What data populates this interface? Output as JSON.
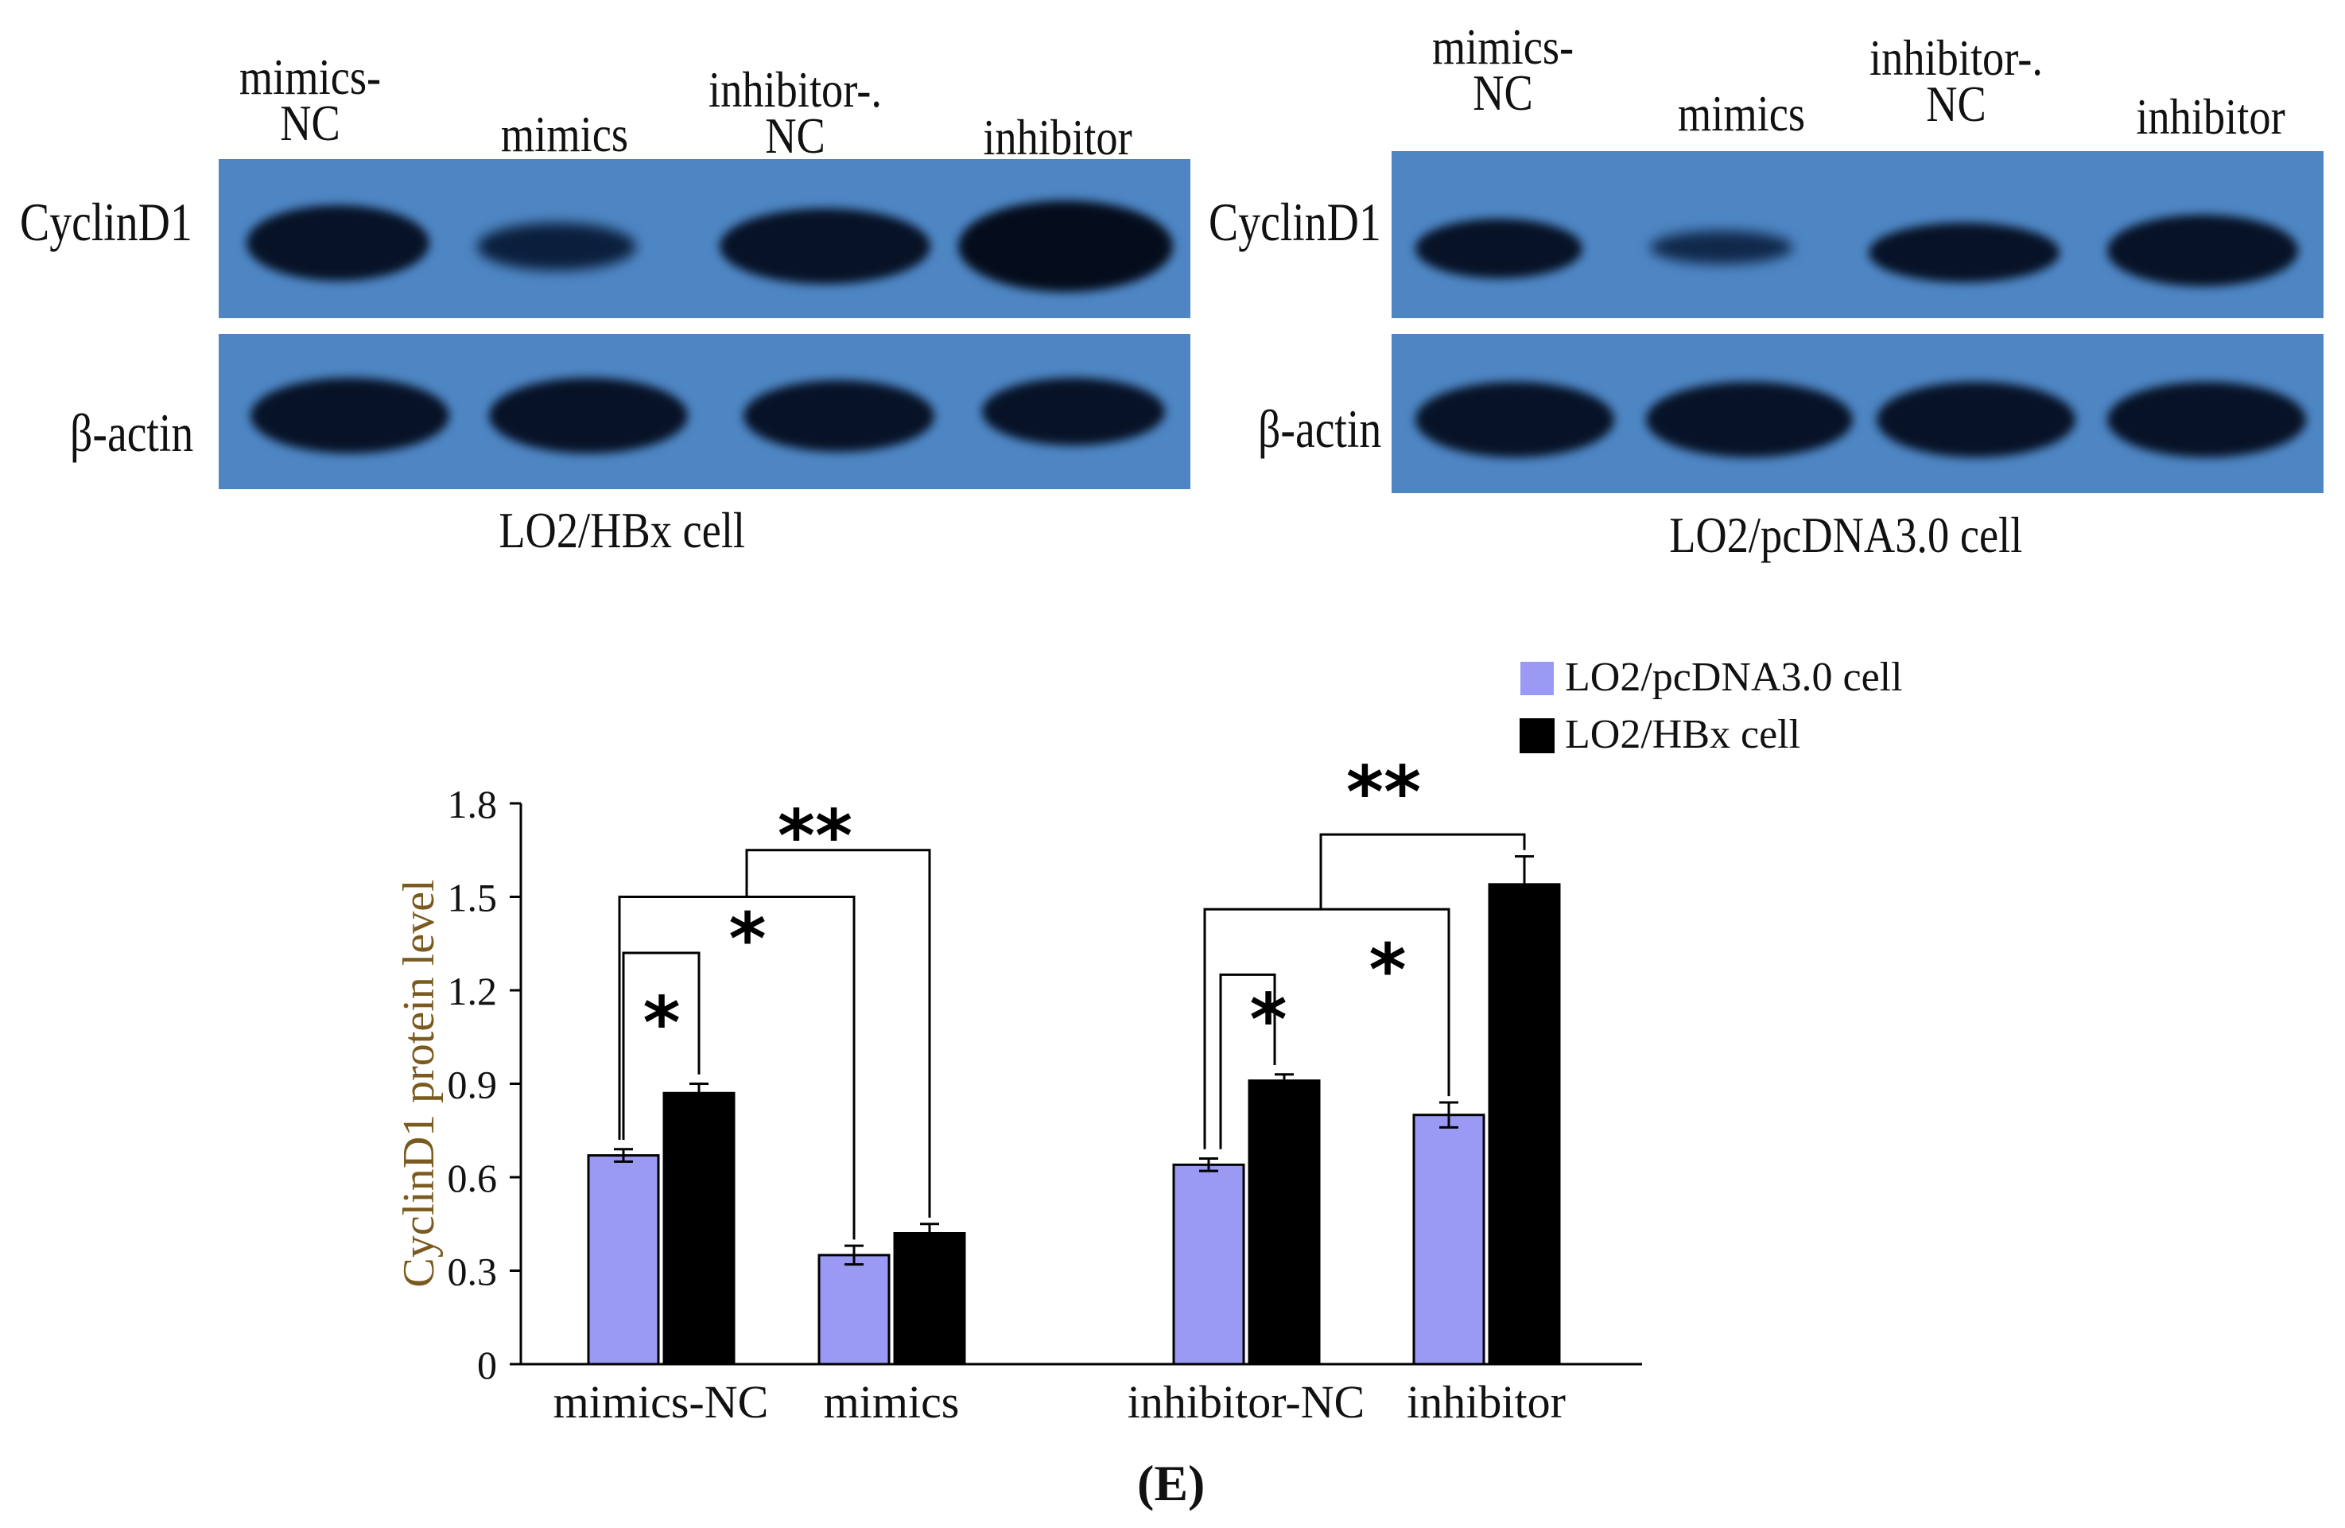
{
  "blots": {
    "left": {
      "lanes": [
        "mimics-\nNC",
        "mimics",
        "inhibitor-.\nNC",
        "inhibitor"
      ],
      "rows": [
        "CyclinD1",
        "β-actin"
      ],
      "cell_label": "LO2/HBx cell"
    },
    "right": {
      "lanes": [
        "mimics-\nNC",
        "mimics",
        "inhibitor-.\nNC",
        "inhibitor"
      ],
      "rows": [
        "CyclinD1",
        "β-actin"
      ],
      "cell_label": "LO2/pcDNA3.0 cell"
    },
    "colors": {
      "membrane": "#4e86c4",
      "band": "#071226"
    }
  },
  "chart_data": {
    "type": "bar",
    "categories": [
      "mimics-NC",
      "mimics",
      "inhibitor-NC",
      "inhibitor"
    ],
    "series": [
      {
        "name": "LO2/pcDNA3.0 cell",
        "color": "#9a9af4",
        "values": [
          0.67,
          0.35,
          0.64,
          0.8
        ],
        "errors": [
          0.02,
          0.03,
          0.02,
          0.04
        ]
      },
      {
        "name": "LO2/HBx cell",
        "color": "#000000",
        "values": [
          0.87,
          0.42,
          0.91,
          1.54
        ],
        "errors": [
          0.03,
          0.03,
          0.02,
          0.09
        ]
      }
    ],
    "ylabel": "CyclinD1 protein level",
    "ylim": [
      0,
      1.8
    ],
    "yticks": [
      "0",
      "0.3",
      "0.6",
      "0.9",
      "1.2",
      "1.5",
      "1.8"
    ],
    "legend_position": "top-right",
    "significance": [
      "*",
      "*",
      "**",
      "*",
      "*",
      "**"
    ]
  },
  "panel_label": "(E)"
}
